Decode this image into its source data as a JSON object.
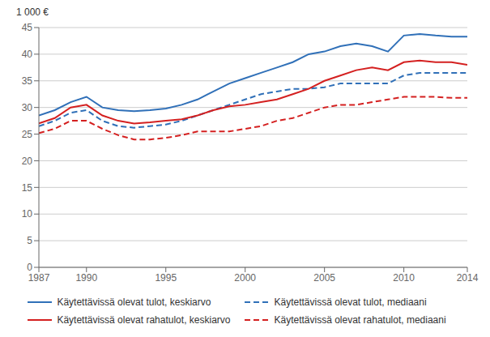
{
  "chart_data": {
    "type": "line",
    "y_label": "1 000 €",
    "x": [
      1987,
      1988,
      1989,
      1990,
      1991,
      1992,
      1993,
      1994,
      1995,
      1996,
      1997,
      1998,
      1999,
      2000,
      2001,
      2002,
      2003,
      2004,
      2005,
      2006,
      2007,
      2008,
      2009,
      2010,
      2011,
      2012,
      2013,
      2014
    ],
    "series": [
      {
        "name": "Käytettävissä olevat tulot, keskiarvo",
        "color": "#3070b8",
        "line_style": "solid",
        "values": [
          28.5,
          29.5,
          31.0,
          32.0,
          30.0,
          29.5,
          29.3,
          29.5,
          29.8,
          30.5,
          31.5,
          33.0,
          34.5,
          35.5,
          36.5,
          37.5,
          38.5,
          40.0,
          40.5,
          41.5,
          42.0,
          41.5,
          40.5,
          43.5,
          43.8,
          43.5,
          43.3,
          43.3
        ]
      },
      {
        "name": "Käytettävissä olevat tulot, mediaani",
        "color": "#3070b8",
        "line_style": "dashed",
        "values": [
          26.5,
          27.5,
          29.0,
          29.5,
          27.5,
          26.5,
          26.2,
          26.5,
          26.8,
          27.5,
          28.5,
          29.5,
          30.5,
          31.5,
          32.5,
          33.0,
          33.5,
          33.5,
          33.8,
          34.5,
          34.5,
          34.5,
          34.5,
          36.0,
          36.5,
          36.5,
          36.5,
          36.5
        ]
      },
      {
        "name": "Käytettävissä olevat rahatulot, keskiarvo",
        "color": "#d42020",
        "line_style": "solid",
        "values": [
          27.0,
          28.0,
          30.0,
          30.5,
          28.5,
          27.5,
          27.0,
          27.2,
          27.5,
          27.8,
          28.5,
          29.5,
          30.2,
          30.5,
          31.0,
          31.5,
          32.5,
          33.5,
          35.0,
          36.0,
          37.0,
          37.5,
          37.0,
          38.5,
          38.8,
          38.5,
          38.5,
          38.0
        ]
      },
      {
        "name": "Käytettävissä olevat rahatulot, mediaani",
        "color": "#d42020",
        "line_style": "dashed",
        "values": [
          25.2,
          26.0,
          27.5,
          27.5,
          26.0,
          24.8,
          24.0,
          24.0,
          24.3,
          24.8,
          25.5,
          25.5,
          25.5,
          26.0,
          26.5,
          27.5,
          28.0,
          29.0,
          30.0,
          30.5,
          30.5,
          31.0,
          31.5,
          32.0,
          32.0,
          32.0,
          31.8,
          31.8
        ]
      }
    ],
    "xlim": [
      1987,
      2014
    ],
    "xticks": [
      1987,
      1990,
      1995,
      2000,
      2005,
      2010,
      2014
    ],
    "ylim": [
      0,
      45
    ],
    "yticks": [
      0,
      5,
      10,
      15,
      20,
      25,
      30,
      35,
      40,
      45
    ],
    "grid": true
  }
}
